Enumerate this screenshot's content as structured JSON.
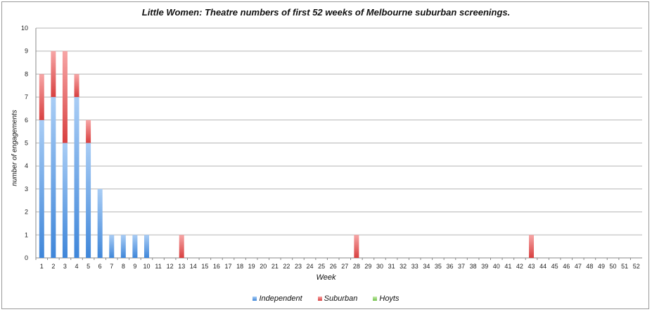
{
  "chart_data": {
    "type": "bar",
    "stacked": true,
    "title": "Little Women: Theatre numbers of first 52 weeks of Melbourne suburban screenings.",
    "xlabel": "Week",
    "ylabel": "number of engagements",
    "ylim": [
      0,
      10
    ],
    "yticks": [
      "0",
      "1",
      "2",
      "3",
      "4",
      "5",
      "6",
      "7",
      "8",
      "9",
      "10"
    ],
    "grid": true,
    "legend_position": "bottom",
    "categories": [
      "1",
      "2",
      "3",
      "4",
      "5",
      "6",
      "7",
      "8",
      "9",
      "10",
      "11",
      "12",
      "13",
      "14",
      "15",
      "16",
      "17",
      "18",
      "19",
      "20",
      "21",
      "22",
      "23",
      "24",
      "25",
      "26",
      "27",
      "28",
      "29",
      "30",
      "31",
      "32",
      "33",
      "34",
      "35",
      "36",
      "37",
      "38",
      "39",
      "40",
      "41",
      "42",
      "43",
      "44",
      "45",
      "46",
      "47",
      "48",
      "49",
      "50",
      "51",
      "52"
    ],
    "series": [
      {
        "name": "Independent",
        "color": "#5b9bd5",
        "values": [
          6,
          7,
          5,
          7,
          5,
          3,
          1,
          1,
          1,
          1,
          0,
          0,
          0,
          0,
          0,
          0,
          0,
          0,
          0,
          0,
          0,
          0,
          0,
          0,
          0,
          0,
          0,
          0,
          0,
          0,
          0,
          0,
          0,
          0,
          0,
          0,
          0,
          0,
          0,
          0,
          0,
          0,
          0,
          0,
          0,
          0,
          0,
          0,
          0,
          0,
          0,
          0
        ]
      },
      {
        "name": "Suburban",
        "color": "#e85a5a",
        "values": [
          2,
          2,
          4,
          1,
          1,
          0,
          0,
          0,
          0,
          0,
          0,
          0,
          1,
          0,
          0,
          0,
          0,
          0,
          0,
          0,
          0,
          0,
          0,
          0,
          0,
          0,
          0,
          1,
          0,
          0,
          0,
          0,
          0,
          0,
          0,
          0,
          0,
          0,
          0,
          0,
          0,
          0,
          1,
          0,
          0,
          0,
          0,
          0,
          0,
          0,
          0,
          0
        ]
      },
      {
        "name": "Hoyts",
        "color": "#8ed46a",
        "values": [
          0,
          0,
          0,
          0,
          0,
          0,
          0,
          0,
          0,
          0,
          0,
          0,
          0,
          0,
          0,
          0,
          0,
          0,
          0,
          0,
          0,
          0,
          0,
          0,
          0,
          0,
          0,
          0,
          0,
          0,
          0,
          0,
          0,
          0,
          0,
          0,
          0,
          0,
          0,
          0,
          0,
          0,
          0,
          0,
          0,
          0,
          0,
          0,
          0,
          0,
          0,
          0
        ]
      }
    ]
  }
}
